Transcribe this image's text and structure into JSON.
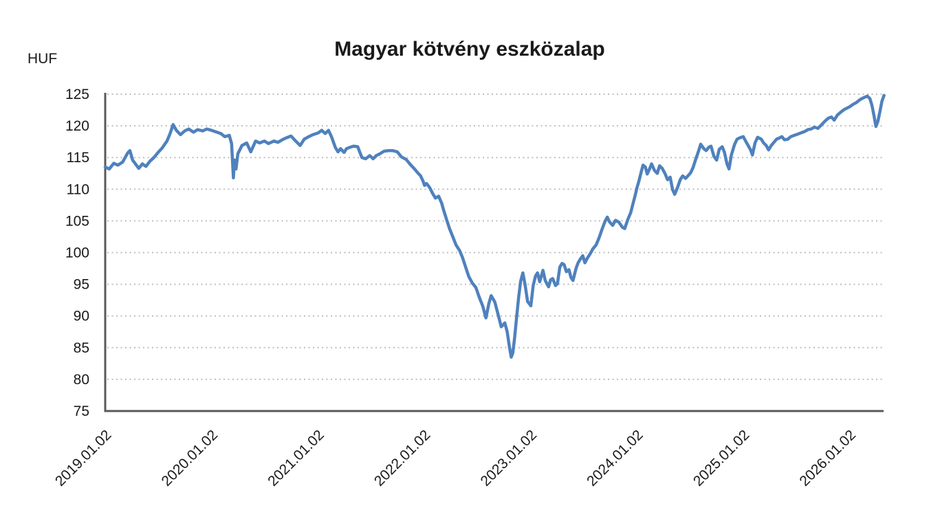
{
  "title": "Magyar kötvény eszközalap",
  "y_axis_unit": "HUF",
  "colors": {
    "line": "#4F81BD",
    "axis": "#595959",
    "grid": "#bdbdbd",
    "text": "#1a1a1a"
  },
  "chart_data": {
    "type": "line",
    "title": "Magyar kötvény eszközalap",
    "ylabel": "HUF",
    "xlabel": "",
    "ylim": [
      75,
      125
    ],
    "y_ticks": [
      75,
      80,
      85,
      90,
      95,
      100,
      105,
      110,
      115,
      120,
      125
    ],
    "x_tick_labels": [
      "2019.01.02",
      "2020.01.02",
      "2021.01.02",
      "2022.01.02",
      "2023.01.02",
      "2024.01.02",
      "2025.01.02",
      "2026.01.02"
    ],
    "grid": "horizontal-dotted",
    "legend": "none",
    "series": [
      {
        "name": "Magyar kötvény eszközalap (HUF)",
        "points": [
          [
            "2019-01-02",
            113.5
          ],
          [
            "2019-01-16",
            113.2
          ],
          [
            "2019-02-01",
            114.1
          ],
          [
            "2019-02-15",
            113.8
          ],
          [
            "2019-03-01",
            114.3
          ],
          [
            "2019-03-18",
            115.7
          ],
          [
            "2019-03-26",
            116.1
          ],
          [
            "2019-04-05",
            114.6
          ],
          [
            "2019-04-16",
            113.9
          ],
          [
            "2019-04-26",
            113.3
          ],
          [
            "2019-05-08",
            114.0
          ],
          [
            "2019-05-20",
            113.6
          ],
          [
            "2019-06-03",
            114.4
          ],
          [
            "2019-06-17",
            115.0
          ],
          [
            "2019-07-01",
            115.8
          ],
          [
            "2019-07-15",
            116.5
          ],
          [
            "2019-08-01",
            117.6
          ],
          [
            "2019-08-12",
            118.8
          ],
          [
            "2019-08-22",
            120.2
          ],
          [
            "2019-09-03",
            119.3
          ],
          [
            "2019-09-17",
            118.6
          ],
          [
            "2019-10-01",
            119.2
          ],
          [
            "2019-10-15",
            119.5
          ],
          [
            "2019-11-01",
            119.0
          ],
          [
            "2019-11-15",
            119.4
          ],
          [
            "2019-12-02",
            119.2
          ],
          [
            "2019-12-16",
            119.5
          ],
          [
            "2020-01-02",
            119.3
          ],
          [
            "2020-01-20",
            119.0
          ],
          [
            "2020-02-03",
            118.8
          ],
          [
            "2020-02-17",
            118.3
          ],
          [
            "2020-03-02",
            118.5
          ],
          [
            "2020-03-10",
            117.2
          ],
          [
            "2020-03-16",
            111.8
          ],
          [
            "2020-03-20",
            114.6
          ],
          [
            "2020-03-25",
            113.2
          ],
          [
            "2020-04-01",
            115.6
          ],
          [
            "2020-04-15",
            116.9
          ],
          [
            "2020-05-01",
            117.3
          ],
          [
            "2020-05-15",
            115.9
          ],
          [
            "2020-06-01",
            117.6
          ],
          [
            "2020-06-15",
            117.3
          ],
          [
            "2020-07-01",
            117.6
          ],
          [
            "2020-07-15",
            117.2
          ],
          [
            "2020-08-03",
            117.6
          ],
          [
            "2020-08-17",
            117.4
          ],
          [
            "2020-09-01",
            117.8
          ],
          [
            "2020-09-15",
            118.1
          ],
          [
            "2020-10-01",
            118.4
          ],
          [
            "2020-10-15",
            117.7
          ],
          [
            "2020-11-02",
            116.9
          ],
          [
            "2020-11-16",
            117.9
          ],
          [
            "2020-12-01",
            118.3
          ],
          [
            "2020-12-15",
            118.6
          ],
          [
            "2021-01-04",
            118.9
          ],
          [
            "2021-01-15",
            119.3
          ],
          [
            "2021-01-27",
            118.8
          ],
          [
            "2021-02-08",
            119.3
          ],
          [
            "2021-02-19",
            118.2
          ],
          [
            "2021-03-01",
            116.6
          ],
          [
            "2021-03-10",
            115.9
          ],
          [
            "2021-03-19",
            116.4
          ],
          [
            "2021-03-31",
            115.8
          ],
          [
            "2021-04-09",
            116.4
          ],
          [
            "2021-04-20",
            116.6
          ],
          [
            "2021-05-03",
            116.8
          ],
          [
            "2021-05-17",
            116.7
          ],
          [
            "2021-06-01",
            115.0
          ],
          [
            "2021-06-14",
            114.8
          ],
          [
            "2021-06-28",
            115.3
          ],
          [
            "2021-07-09",
            114.8
          ],
          [
            "2021-07-20",
            115.3
          ],
          [
            "2021-08-02",
            115.6
          ],
          [
            "2021-08-16",
            116.0
          ],
          [
            "2021-09-01",
            116.1
          ],
          [
            "2021-09-15",
            116.1
          ],
          [
            "2021-10-01",
            115.9
          ],
          [
            "2021-10-15",
            115.1
          ],
          [
            "2021-11-01",
            114.7
          ],
          [
            "2021-11-15",
            113.9
          ],
          [
            "2021-12-01",
            113.1
          ],
          [
            "2021-12-10",
            112.6
          ],
          [
            "2021-12-20",
            112.1
          ],
          [
            "2021-12-29",
            111.2
          ],
          [
            "2022-01-03",
            110.6
          ],
          [
            "2022-01-10",
            110.9
          ],
          [
            "2022-01-20",
            110.3
          ],
          [
            "2022-02-01",
            109.3
          ],
          [
            "2022-02-10",
            108.6
          ],
          [
            "2022-02-21",
            108.9
          ],
          [
            "2022-03-01",
            107.8
          ],
          [
            "2022-03-09",
            106.5
          ],
          [
            "2022-03-18",
            105.2
          ],
          [
            "2022-03-28",
            103.8
          ],
          [
            "2022-04-08",
            102.6
          ],
          [
            "2022-04-20",
            101.2
          ],
          [
            "2022-05-02",
            100.3
          ],
          [
            "2022-05-12",
            99.2
          ],
          [
            "2022-05-24",
            97.5
          ],
          [
            "2022-06-03",
            96.2
          ],
          [
            "2022-06-15",
            95.2
          ],
          [
            "2022-06-27",
            94.5
          ],
          [
            "2022-07-08",
            93.0
          ],
          [
            "2022-07-20",
            91.6
          ],
          [
            "2022-08-01",
            89.7
          ],
          [
            "2022-08-11",
            92.0
          ],
          [
            "2022-08-19",
            93.2
          ],
          [
            "2022-09-01",
            92.2
          ],
          [
            "2022-09-13",
            90.1
          ],
          [
            "2022-09-23",
            88.3
          ],
          [
            "2022-10-05",
            88.9
          ],
          [
            "2022-10-13",
            87.5
          ],
          [
            "2022-10-21",
            85.0
          ],
          [
            "2022-10-27",
            83.5
          ],
          [
            "2022-11-02",
            84.2
          ],
          [
            "2022-11-08",
            86.5
          ],
          [
            "2022-11-15",
            89.8
          ],
          [
            "2022-11-22",
            93.0
          ],
          [
            "2022-11-29",
            95.5
          ],
          [
            "2022-12-06",
            96.8
          ],
          [
            "2022-12-14",
            94.8
          ],
          [
            "2022-12-22",
            92.3
          ],
          [
            "2023-01-03",
            91.6
          ],
          [
            "2023-01-11",
            94.8
          ],
          [
            "2023-01-19",
            96.3
          ],
          [
            "2023-01-26",
            96.8
          ],
          [
            "2023-02-03",
            95.4
          ],
          [
            "2023-02-14",
            97.2
          ],
          [
            "2023-02-22",
            95.6
          ],
          [
            "2023-03-03",
            94.6
          ],
          [
            "2023-03-10",
            95.7
          ],
          [
            "2023-03-17",
            95.9
          ],
          [
            "2023-03-27",
            94.8
          ],
          [
            "2023-04-03",
            95.1
          ],
          [
            "2023-04-11",
            97.7
          ],
          [
            "2023-04-19",
            98.3
          ],
          [
            "2023-04-26",
            98.1
          ],
          [
            "2023-05-03",
            97.0
          ],
          [
            "2023-05-12",
            97.3
          ],
          [
            "2023-05-19",
            96.1
          ],
          [
            "2023-05-26",
            95.6
          ],
          [
            "2023-06-06",
            97.5
          ],
          [
            "2023-06-13",
            98.4
          ],
          [
            "2023-06-21",
            99.0
          ],
          [
            "2023-06-29",
            99.5
          ],
          [
            "2023-07-06",
            98.4
          ],
          [
            "2023-07-14",
            99.1
          ],
          [
            "2023-07-24",
            99.8
          ],
          [
            "2023-08-03",
            100.6
          ],
          [
            "2023-08-14",
            101.2
          ],
          [
            "2023-08-24",
            102.3
          ],
          [
            "2023-09-05",
            103.8
          ],
          [
            "2023-09-14",
            104.9
          ],
          [
            "2023-09-22",
            105.6
          ],
          [
            "2023-09-29",
            104.9
          ],
          [
            "2023-10-10",
            104.3
          ],
          [
            "2023-10-20",
            105.1
          ],
          [
            "2023-11-01",
            104.8
          ],
          [
            "2023-11-13",
            104.0
          ],
          [
            "2023-11-21",
            103.8
          ],
          [
            "2023-12-01",
            105.2
          ],
          [
            "2023-12-11",
            106.3
          ],
          [
            "2023-12-19",
            107.7
          ],
          [
            "2023-12-27",
            109.1
          ],
          [
            "2024-01-02",
            110.2
          ],
          [
            "2024-01-09",
            111.3
          ],
          [
            "2024-01-16",
            112.6
          ],
          [
            "2024-01-23",
            113.8
          ],
          [
            "2024-01-31",
            113.5
          ],
          [
            "2024-02-07",
            112.4
          ],
          [
            "2024-02-15",
            113.2
          ],
          [
            "2024-02-22",
            114.0
          ],
          [
            "2024-03-01",
            113.0
          ],
          [
            "2024-03-11",
            112.5
          ],
          [
            "2024-03-19",
            113.7
          ],
          [
            "2024-03-28",
            113.3
          ],
          [
            "2024-04-08",
            112.4
          ],
          [
            "2024-04-16",
            111.5
          ],
          [
            "2024-04-25",
            111.9
          ],
          [
            "2024-05-03",
            109.9
          ],
          [
            "2024-05-10",
            109.2
          ],
          [
            "2024-05-20",
            110.3
          ],
          [
            "2024-05-29",
            111.5
          ],
          [
            "2024-06-07",
            112.1
          ],
          [
            "2024-06-17",
            111.7
          ],
          [
            "2024-06-25",
            112.1
          ],
          [
            "2024-07-04",
            112.6
          ],
          [
            "2024-07-12",
            113.4
          ],
          [
            "2024-07-22",
            114.8
          ],
          [
            "2024-07-31",
            116.0
          ],
          [
            "2024-08-08",
            117.1
          ],
          [
            "2024-08-19",
            116.4
          ],
          [
            "2024-08-27",
            116.1
          ],
          [
            "2024-09-05",
            116.6
          ],
          [
            "2024-09-13",
            116.8
          ],
          [
            "2024-09-23",
            115.2
          ],
          [
            "2024-10-02",
            114.6
          ],
          [
            "2024-10-11",
            116.3
          ],
          [
            "2024-10-21",
            116.7
          ],
          [
            "2024-10-29",
            115.8
          ],
          [
            "2024-11-07",
            114.0
          ],
          [
            "2024-11-14",
            113.2
          ],
          [
            "2024-11-22",
            115.4
          ],
          [
            "2024-12-02",
            117.0
          ],
          [
            "2024-12-11",
            117.9
          ],
          [
            "2024-12-20",
            118.1
          ],
          [
            "2025-01-02",
            118.3
          ],
          [
            "2025-01-10",
            117.6
          ],
          [
            "2025-01-20",
            116.8
          ],
          [
            "2025-01-27",
            116.2
          ],
          [
            "2025-02-03",
            115.4
          ],
          [
            "2025-02-12",
            117.3
          ],
          [
            "2025-02-21",
            118.2
          ],
          [
            "2025-03-03",
            117.9
          ],
          [
            "2025-03-11",
            117.3
          ],
          [
            "2025-03-20",
            116.9
          ],
          [
            "2025-03-28",
            116.2
          ],
          [
            "2025-04-07",
            116.9
          ],
          [
            "2025-04-16",
            117.4
          ],
          [
            "2025-04-25",
            117.9
          ],
          [
            "2025-05-05",
            118.1
          ],
          [
            "2025-05-13",
            118.3
          ],
          [
            "2025-05-22",
            117.8
          ],
          [
            "2025-06-03",
            117.9
          ],
          [
            "2025-06-13",
            118.3
          ],
          [
            "2025-06-25",
            118.5
          ],
          [
            "2025-07-07",
            118.7
          ],
          [
            "2025-07-18",
            118.9
          ],
          [
            "2025-07-30",
            119.1
          ],
          [
            "2025-08-11",
            119.4
          ],
          [
            "2025-08-22",
            119.5
          ],
          [
            "2025-09-03",
            119.8
          ],
          [
            "2025-09-15",
            119.6
          ],
          [
            "2025-09-26",
            120.1
          ],
          [
            "2025-10-08",
            120.7
          ],
          [
            "2025-10-20",
            121.2
          ],
          [
            "2025-10-31",
            121.4
          ],
          [
            "2025-11-10",
            120.9
          ],
          [
            "2025-11-21",
            121.7
          ],
          [
            "2025-12-03",
            122.2
          ],
          [
            "2025-12-15",
            122.6
          ],
          [
            "2026-01-02",
            123.0
          ],
          [
            "2026-01-14",
            123.4
          ],
          [
            "2026-01-26",
            123.7
          ],
          [
            "2026-02-06",
            124.1
          ],
          [
            "2026-02-18",
            124.4
          ],
          [
            "2026-03-02",
            124.7
          ],
          [
            "2026-03-11",
            124.3
          ],
          [
            "2026-03-18",
            123.2
          ],
          [
            "2026-03-25",
            121.6
          ],
          [
            "2026-04-01",
            119.9
          ],
          [
            "2026-04-08",
            120.7
          ],
          [
            "2026-04-15",
            122.3
          ],
          [
            "2026-04-22",
            123.9
          ],
          [
            "2026-04-29",
            124.8
          ]
        ]
      }
    ]
  }
}
